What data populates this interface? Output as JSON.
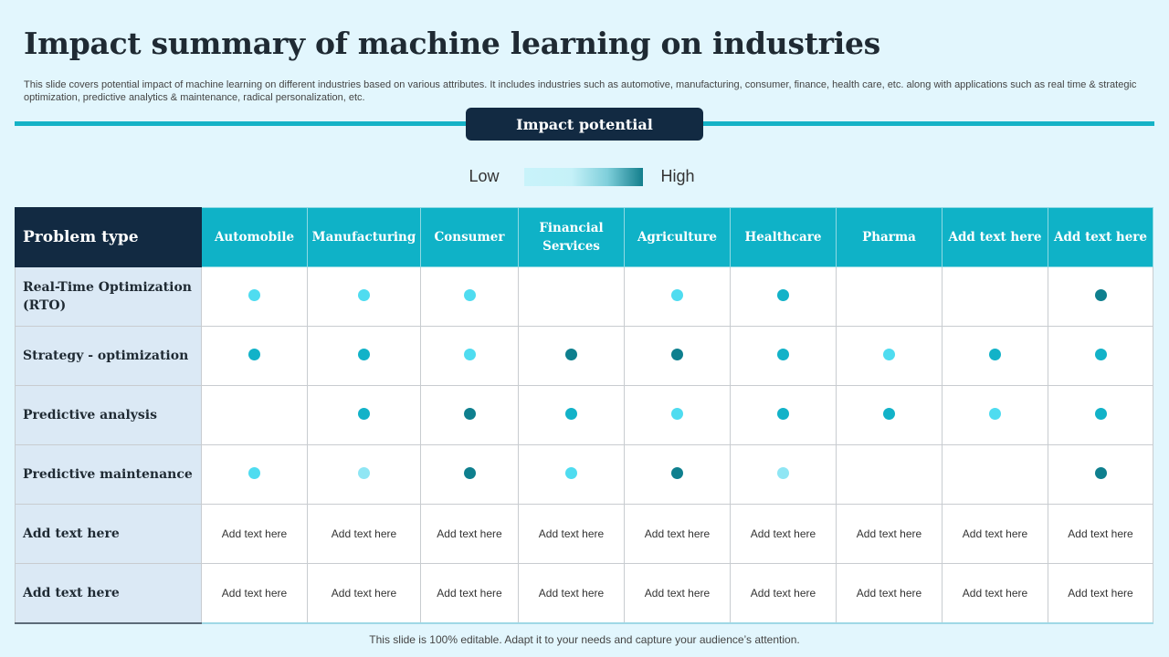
{
  "title": "Impact summary of machine learning on industries",
  "subtitle": "This slide covers potential impact of machine learning on different industries based on various attributes. It includes industries such as automotive, manufacturing, consumer, finance, health care, etc.  along with applications such as real time &  strategic optimization, predictive analytics &  maintenance, radical personalization, etc.",
  "impact_label": "Impact potential",
  "legend": {
    "low": "Low",
    "high": "High"
  },
  "colors": {
    "level_1": "#8fe6f4",
    "level_2": "#4fdcf0",
    "level_3": "#12b2c8",
    "level_4": "#0e7f8e",
    "header": "#0fb2c7",
    "dark": "#122a42"
  },
  "table": {
    "corner": "Problem type",
    "columns": [
      "Automobile",
      "Manufacturing",
      "Consumer",
      "Financial Services",
      "Agriculture",
      "Healthcare",
      "Pharma",
      "Add text here",
      "Add text here"
    ],
    "rows": [
      {
        "label": "Real-Time Optimization (RTO)",
        "levels": [
          2,
          2,
          2,
          0,
          2,
          3,
          0,
          0,
          4
        ]
      },
      {
        "label": "Strategy - optimization",
        "levels": [
          3,
          3,
          2,
          4,
          4,
          3,
          2,
          3,
          3
        ]
      },
      {
        "label": "Predictive analysis",
        "levels": [
          0,
          3,
          4,
          3,
          2,
          3,
          3,
          2,
          3
        ]
      },
      {
        "label": "Predictive maintenance",
        "levels": [
          2,
          1,
          4,
          2,
          4,
          1,
          0,
          0,
          4
        ]
      },
      {
        "label": "Add text here",
        "cells": [
          "Add text here",
          "Add text here",
          "Add text here",
          "Add text here",
          "Add text here",
          "Add text here",
          "Add text here",
          "Add text here",
          "Add text here"
        ]
      },
      {
        "label": "Add text here",
        "cells": [
          "Add text here",
          "Add text here",
          "Add text here",
          "Add text here",
          "Add text here",
          "Add text here",
          "Add text here",
          "Add text here",
          "Add text here"
        ]
      }
    ]
  },
  "footer": "This slide is 100% editable. Adapt it to your needs and capture your audience’s attention."
}
